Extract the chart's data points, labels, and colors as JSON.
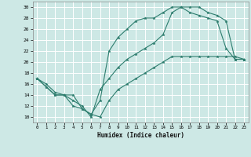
{
  "xlabel": "Humidex (Indice chaleur)",
  "ylabel": "",
  "bg_color": "#cde8e5",
  "grid_color": "#ffffff",
  "line_color": "#2d7d6e",
  "xlim": [
    -0.5,
    23.5
  ],
  "ylim": [
    9,
    31
  ],
  "xticks": [
    0,
    1,
    2,
    3,
    4,
    5,
    6,
    7,
    8,
    9,
    10,
    11,
    12,
    13,
    14,
    15,
    16,
    17,
    18,
    19,
    20,
    21,
    22,
    23
  ],
  "yticks": [
    10,
    12,
    14,
    16,
    18,
    20,
    22,
    24,
    26,
    28,
    30
  ],
  "line1_x": [
    0,
    1,
    2,
    3,
    4,
    5,
    6,
    7,
    8,
    9,
    10,
    11,
    12,
    13,
    14,
    15,
    16,
    17,
    18,
    19,
    20,
    21,
    22,
    23
  ],
  "line1_y": [
    17,
    15.5,
    14,
    14,
    14,
    11.5,
    10.5,
    10,
    13,
    15,
    16,
    17,
    18,
    19,
    20,
    21,
    21,
    21,
    21,
    21,
    21,
    21,
    21,
    20.5
  ],
  "line2_x": [
    0,
    1,
    2,
    3,
    4,
    5,
    6,
    7,
    8,
    9,
    10,
    11,
    12,
    13,
    14,
    15,
    16,
    17,
    18,
    19,
    20,
    21,
    22,
    23
  ],
  "line2_y": [
    17,
    15.5,
    14,
    14,
    12,
    11.5,
    10.5,
    13,
    22,
    24.5,
    26,
    27.5,
    28,
    28,
    29,
    30,
    30,
    29,
    28.5,
    28,
    27.5,
    22.5,
    20.5,
    20.5
  ],
  "line3_x": [
    0,
    1,
    2,
    3,
    4,
    5,
    6,
    7,
    8,
    9,
    10,
    11,
    12,
    13,
    14,
    15,
    16,
    17,
    18,
    19,
    20,
    21,
    22,
    23
  ],
  "line3_y": [
    17,
    16,
    14.5,
    14,
    13,
    12,
    10,
    15,
    17,
    19,
    20.5,
    21.5,
    22.5,
    23.5,
    25,
    29,
    30,
    30,
    30,
    29,
    28.5,
    27.5,
    20.5,
    20.5
  ]
}
